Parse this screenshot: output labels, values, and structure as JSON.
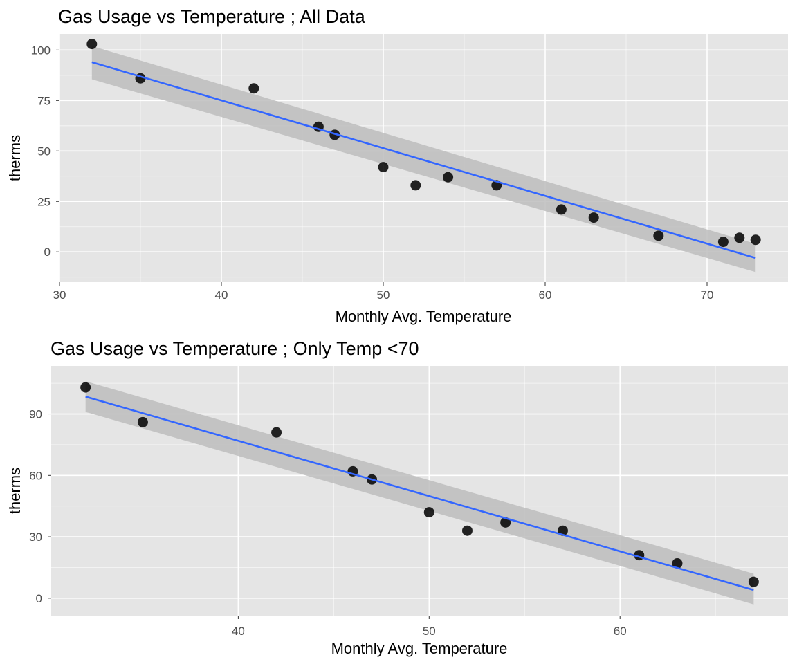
{
  "colors": {
    "panel_bg": "#e5e5e5",
    "grid": "#ffffff",
    "point": "#000000",
    "line": "#3366ff",
    "ribbon": "#bdbdbd"
  },
  "chart_data": [
    {
      "type": "scatter",
      "title": "Gas Usage vs Temperature ; All Data",
      "xlabel": "Monthly Avg. Temperature",
      "ylabel": "therms",
      "xlim": [
        30,
        75
      ],
      "ylim": [
        -15,
        108
      ],
      "xticks": [
        30,
        40,
        50,
        60,
        70
      ],
      "yticks": [
        0,
        25,
        50,
        75,
        100
      ],
      "grid": true,
      "points": [
        {
          "x": 32,
          "y": 103
        },
        {
          "x": 35,
          "y": 86
        },
        {
          "x": 42,
          "y": 81
        },
        {
          "x": 46,
          "y": 62
        },
        {
          "x": 47,
          "y": 58
        },
        {
          "x": 50,
          "y": 42
        },
        {
          "x": 52,
          "y": 33
        },
        {
          "x": 54,
          "y": 37
        },
        {
          "x": 57,
          "y": 33
        },
        {
          "x": 61,
          "y": 21
        },
        {
          "x": 63,
          "y": 17
        },
        {
          "x": 67,
          "y": 8
        },
        {
          "x": 71,
          "y": 5
        },
        {
          "x": 72,
          "y": 7
        },
        {
          "x": 73,
          "y": 6
        }
      ],
      "fit_line": {
        "x": [
          32,
          73
        ],
        "y": [
          94,
          -3
        ]
      },
      "confidence_band": {
        "x": [
          32,
          73
        ],
        "upper": [
          102,
          4
        ],
        "lower": [
          85.5,
          -10
        ]
      }
    },
    {
      "type": "scatter",
      "title": "Gas Usage vs Temperature ; Only Temp <70",
      "xlabel": "Monthly Avg. Temperature",
      "ylabel": "therms",
      "xlim": [
        30.2,
        68.8
      ],
      "ylim": [
        -8.5,
        113.5
      ],
      "xticks": [
        40,
        50,
        60
      ],
      "yticks": [
        0,
        30,
        60,
        90
      ],
      "grid": true,
      "points": [
        {
          "x": 32,
          "y": 103
        },
        {
          "x": 35,
          "y": 86
        },
        {
          "x": 42,
          "y": 81
        },
        {
          "x": 46,
          "y": 62
        },
        {
          "x": 47,
          "y": 58
        },
        {
          "x": 50,
          "y": 42
        },
        {
          "x": 52,
          "y": 33
        },
        {
          "x": 54,
          "y": 37
        },
        {
          "x": 57,
          "y": 33
        },
        {
          "x": 61,
          "y": 21
        },
        {
          "x": 63,
          "y": 17
        },
        {
          "x": 67,
          "y": 8
        }
      ],
      "fit_line": {
        "x": [
          32,
          67
        ],
        "y": [
          98.5,
          4
        ]
      },
      "confidence_band": {
        "x": [
          32,
          67
        ],
        "upper": [
          106,
          12
        ],
        "lower": [
          91,
          -3
        ]
      }
    }
  ]
}
